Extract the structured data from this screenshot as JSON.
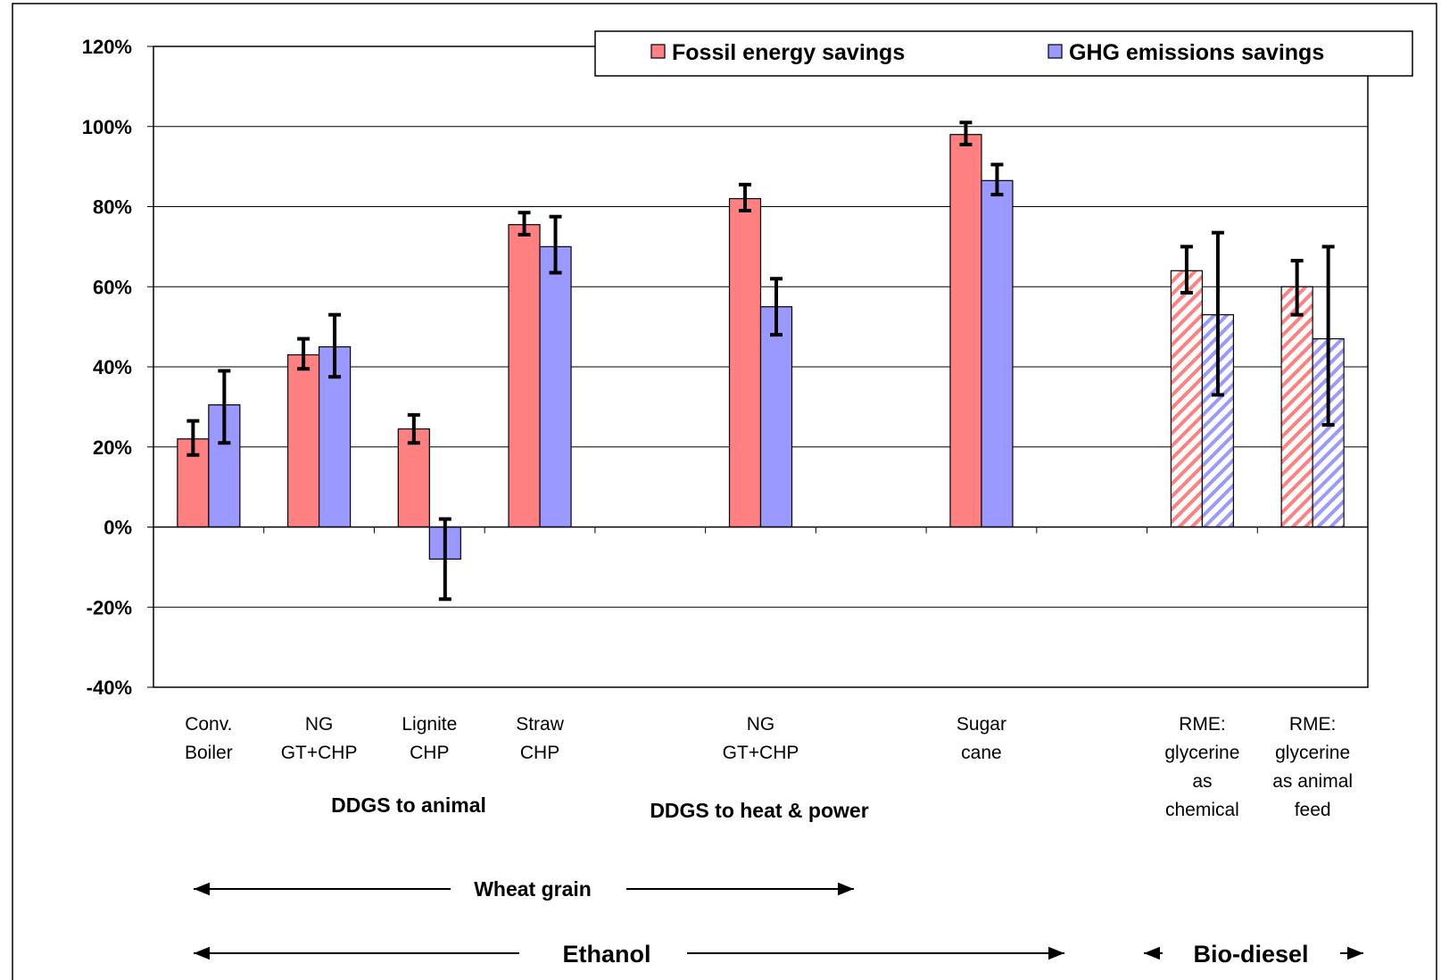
{
  "chart_data": {
    "type": "bar",
    "title": "",
    "xlabel": "",
    "ylabel": "",
    "ylim": [
      -0.4,
      1.2
    ],
    "y_ticks": [
      "-40%",
      "-20%",
      "0%",
      "20%",
      "40%",
      "60%",
      "80%",
      "100%",
      "120%"
    ],
    "grid": true,
    "legend_position": "top-right",
    "colors": {
      "fossil": "#ff8080",
      "ghg": "#9999ff"
    },
    "categories": [
      {
        "lines": [
          "Conv.",
          "Boiler"
        ]
      },
      {
        "lines": [
          "NG",
          "GT+CHP"
        ]
      },
      {
        "lines": [
          "Lignite",
          "CHP"
        ]
      },
      {
        "lines": [
          "Straw",
          "CHP"
        ]
      },
      {
        "lines": []
      },
      {
        "lines": [
          "NG",
          "GT+CHP"
        ]
      },
      {
        "lines": []
      },
      {
        "lines": [
          "Sugar",
          "cane"
        ]
      },
      {
        "lines": []
      },
      {
        "lines": [
          "RME:",
          "glycerine",
          "as",
          "chemical"
        ]
      },
      {
        "lines": [
          "RME:",
          "glycerine",
          "as animal",
          "feed"
        ]
      }
    ],
    "hatched_categories": [
      9,
      10
    ],
    "series": [
      {
        "name": "Fossil energy savings",
        "key": "fossil",
        "values": [
          0.22,
          0.43,
          0.245,
          0.755,
          null,
          0.82,
          null,
          0.98,
          null,
          0.64,
          0.6
        ],
        "err_low": [
          0.18,
          0.395,
          0.21,
          0.73,
          null,
          0.79,
          null,
          0.955,
          null,
          0.585,
          0.53
        ],
        "err_high": [
          0.265,
          0.47,
          0.28,
          0.785,
          null,
          0.855,
          null,
          1.01,
          null,
          0.7,
          0.665
        ]
      },
      {
        "name": "GHG emissions savings",
        "key": "ghg",
        "values": [
          0.305,
          0.45,
          -0.08,
          0.7,
          null,
          0.55,
          null,
          0.865,
          null,
          0.53,
          0.47
        ],
        "err_low": [
          0.21,
          0.375,
          -0.18,
          0.635,
          null,
          0.48,
          null,
          0.83,
          null,
          0.33,
          0.255
        ],
        "err_high": [
          0.39,
          0.53,
          0.02,
          0.775,
          null,
          0.62,
          null,
          0.905,
          null,
          0.735,
          0.7
        ]
      }
    ],
    "group_labels": {
      "ddgs_animal": "DDGS to animal",
      "ddgs_heat": "DDGS to heat & power",
      "wheat": "Wheat grain",
      "ethanol": "Ethanol",
      "biodiesel": "Bio-diesel"
    }
  }
}
